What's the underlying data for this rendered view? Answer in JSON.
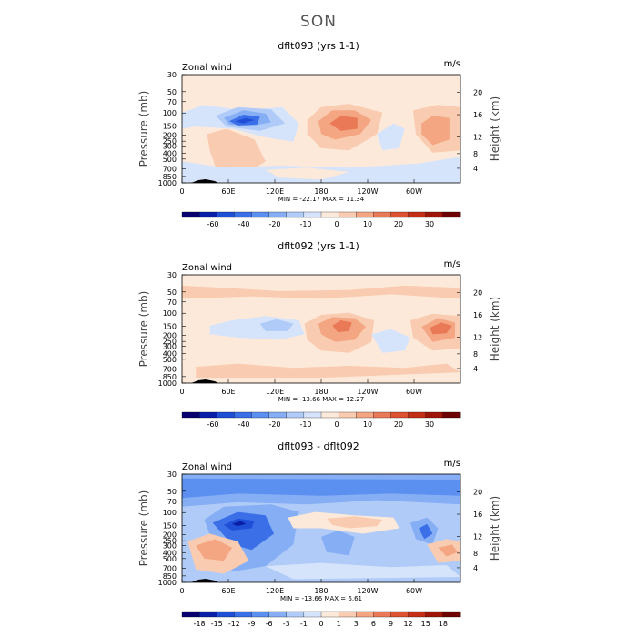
{
  "page_title": "SON",
  "chart_data": [
    {
      "type": "heatmap",
      "title": "dflt093 (yrs 1-1)",
      "variable_label": "Zonal wind",
      "units_label": "m/s",
      "ylabel_left": "Pressure (mb)",
      "ylabel_right": "Height (km)",
      "pressure_ticks": [
        "30",
        "50",
        "70",
        "100",
        "150",
        "200",
        "250",
        "300",
        "400",
        "500",
        "700",
        "850",
        "1000"
      ],
      "height_ticks": [
        "20",
        "16",
        "12",
        "8",
        "4"
      ],
      "lon_ticks": [
        "0",
        "60E",
        "120E",
        "180",
        "120W",
        "60W"
      ],
      "stats": "MIN = -22.17   MAX =  11.34",
      "colorbar_levels": [
        "-60",
        "-40",
        "-20",
        "-10",
        "0",
        "10",
        "20",
        "30"
      ],
      "colorbar_colors": [
        "#08006e",
        "#0a1fa8",
        "#1f4fd6",
        "#3a6fe8",
        "#5b8ff0",
        "#86aef5",
        "#b0cbf8",
        "#d6e4fb",
        "#fde9d9",
        "#f9cbb0",
        "#f4a582",
        "#ea7a57",
        "#dd5233",
        "#c42e16",
        "#9e1408",
        "#6d0302"
      ],
      "min": -22.17,
      "max": 11.34
    },
    {
      "type": "heatmap",
      "title": "dflt092 (yrs 1-1)",
      "variable_label": "Zonal wind",
      "units_label": "m/s",
      "ylabel_left": "Pressure (mb)",
      "ylabel_right": "Height (km)",
      "pressure_ticks": [
        "30",
        "50",
        "70",
        "100",
        "150",
        "200",
        "250",
        "300",
        "400",
        "500",
        "700",
        "850",
        "1000"
      ],
      "height_ticks": [
        "20",
        "16",
        "12",
        "8",
        "4"
      ],
      "lon_ticks": [
        "0",
        "60E",
        "120E",
        "180",
        "120W",
        "60W"
      ],
      "stats": "MIN = -13.66   MAX =  12.27",
      "colorbar_levels": [
        "-60",
        "-40",
        "-20",
        "-10",
        "0",
        "10",
        "20",
        "30"
      ],
      "colorbar_colors": [
        "#08006e",
        "#0a1fa8",
        "#1f4fd6",
        "#3a6fe8",
        "#5b8ff0",
        "#86aef5",
        "#b0cbf8",
        "#d6e4fb",
        "#fde9d9",
        "#f9cbb0",
        "#f4a582",
        "#ea7a57",
        "#dd5233",
        "#c42e16",
        "#9e1408",
        "#6d0302"
      ],
      "min": -13.66,
      "max": 12.27
    },
    {
      "type": "heatmap",
      "title": "dflt093 - dflt092",
      "variable_label": "Zonal wind",
      "units_label": "m/s",
      "ylabel_left": "Pressure (mb)",
      "ylabel_right": "Height (km)",
      "pressure_ticks": [
        "30",
        "50",
        "70",
        "100",
        "150",
        "200",
        "250",
        "300",
        "400",
        "500",
        "700",
        "850",
        "1000"
      ],
      "height_ticks": [
        "20",
        "16",
        "12",
        "8",
        "4"
      ],
      "lon_ticks": [
        "0",
        "60E",
        "120E",
        "180",
        "120W",
        "60W"
      ],
      "stats": "MIN = -13.66   MAX =   6.61",
      "colorbar_levels": [
        "-18",
        "-15",
        "-12",
        "-9",
        "-6",
        "-3",
        "-1",
        "0",
        "1",
        "3",
        "6",
        "9",
        "12",
        "15",
        "18"
      ],
      "colorbar_colors": [
        "#08006e",
        "#0a1fa8",
        "#1f4fd6",
        "#3a6fe8",
        "#5b8ff0",
        "#86aef5",
        "#b0cbf8",
        "#d6e4fb",
        "#fde9d9",
        "#f9cbb0",
        "#f4a582",
        "#ea7a57",
        "#dd5233",
        "#c42e16",
        "#9e1408",
        "#6d0302"
      ],
      "min": -13.66,
      "max": 6.61
    }
  ]
}
